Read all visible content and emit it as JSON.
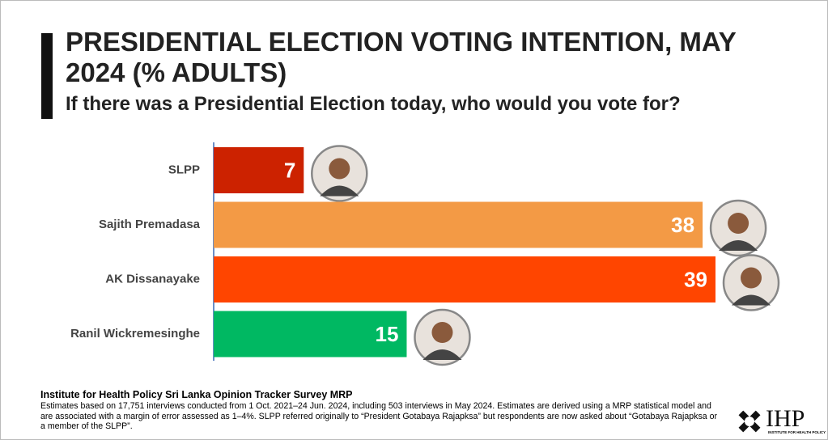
{
  "chart_data": {
    "type": "bar",
    "orientation": "horizontal",
    "title": "PRESIDENTIAL ELECTION VOTING INTENTION, MAY 2024 (% ADULTS)",
    "subtitle": "If there was a Presidential Election today, who would you vote for?",
    "categories": [
      "SLPP",
      "Sajith Premadasa",
      "AK Dissanayake",
      "Ranil Wickremesinghe"
    ],
    "values": [
      7,
      38,
      39,
      15
    ],
    "colors": [
      "#cc2200",
      "#f39a45",
      "#ff4500",
      "#00b862"
    ]
  },
  "footer": {
    "source": "Institute for Health Policy Sri Lanka Opinion Tracker Survey MRP",
    "note": "Estimates based on 17,751 interviews conducted from 1 Oct. 2021–24 Jun. 2024, including 503 interviews in May 2024. Estimates are derived using a MRP statistical model and are associated with a margin of error assessed as 1–4%. SLPP referred originally to “President Gotabaya Rajapksa” but respondents are now asked about “Gotabaya Rajapksa or a member of the SLPP”.",
    "logo": "IHP",
    "logo_sub": "INSTITUTE FOR HEALTH POLICY"
  }
}
